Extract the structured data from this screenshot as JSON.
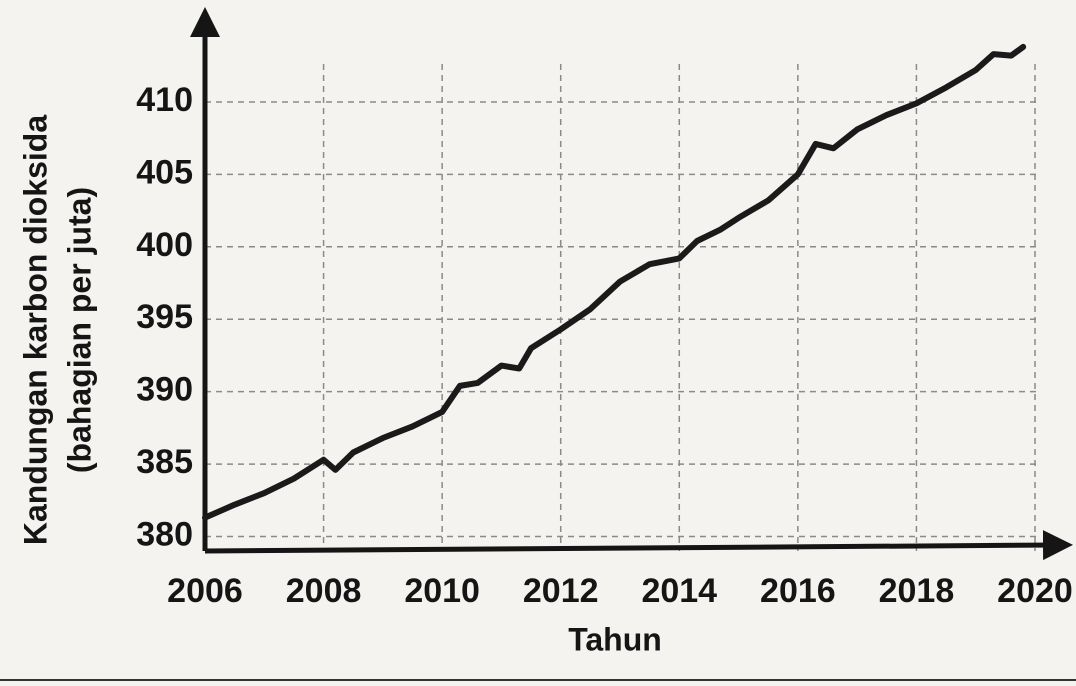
{
  "chart_data": {
    "type": "line",
    "xlabel": "Tahun",
    "ylabel": [
      "Kandungan karbon dioksida",
      "(bahagian per juta)"
    ],
    "x": [
      2006.0,
      2006.5,
      2007.0,
      2007.5,
      2008.0,
      2008.2,
      2008.5,
      2009.0,
      2009.5,
      2010.0,
      2010.3,
      2010.6,
      2011.0,
      2011.3,
      2011.5,
      2012.0,
      2012.5,
      2013.0,
      2013.5,
      2014.0,
      2014.3,
      2014.7,
      2015.0,
      2015.5,
      2016.0,
      2016.3,
      2016.6,
      2017.0,
      2017.5,
      2018.0,
      2018.5,
      2019.0,
      2019.3,
      2019.6,
      2019.8
    ],
    "series": [
      {
        "color": "#1a1a1a",
        "values": [
          381.3,
          382.2,
          383.0,
          384.0,
          385.3,
          384.6,
          385.8,
          386.8,
          387.6,
          388.6,
          390.4,
          390.6,
          391.8,
          391.6,
          393.0,
          394.3,
          395.7,
          397.6,
          398.8,
          399.2,
          400.4,
          401.2,
          402.0,
          403.2,
          405.0,
          407.1,
          406.8,
          408.1,
          409.1,
          409.9,
          411.0,
          412.2,
          413.3,
          413.2,
          413.8
        ]
      }
    ],
    "xlim": [
      2006,
      2020
    ],
    "xticks": [
      2006,
      2008,
      2010,
      2012,
      2014,
      2016,
      2018,
      2020
    ],
    "ylim": [
      379,
      414
    ],
    "yticks": [
      380,
      385,
      390,
      395,
      400,
      405,
      410
    ],
    "grid": true
  }
}
